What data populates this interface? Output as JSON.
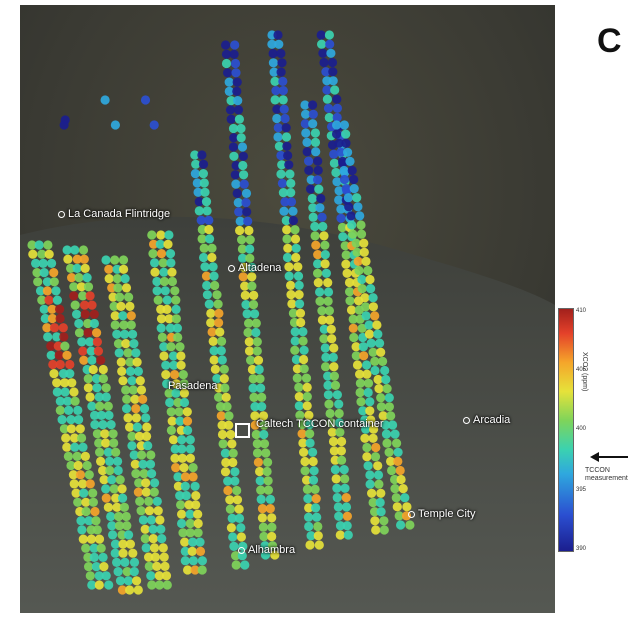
{
  "panel_letter": "C",
  "places": [
    {
      "id": "la-canada",
      "label": "La Canada Flintridge"
    },
    {
      "id": "altadena",
      "label": "Altadena"
    },
    {
      "id": "pasadena",
      "label": "Pasadena"
    },
    {
      "id": "caltech",
      "label": "Caltech TCCON container"
    },
    {
      "id": "arcadia",
      "label": "Arcadia"
    },
    {
      "id": "temple-city",
      "label": "Temple City"
    },
    {
      "id": "alhambra",
      "label": "Alhambra"
    }
  ],
  "colorbar": {
    "label": "XCO2 (ppm)",
    "ticks": [
      "410",
      "405",
      "400",
      "395",
      "390"
    ],
    "annotation": "TCCON measurement",
    "colors": [
      "#1b1e8e",
      "#2b4fd1",
      "#2fa8de",
      "#3bd2b0",
      "#7fd45a",
      "#e6e23a",
      "#f5a52a",
      "#e4412a",
      "#a2201c"
    ]
  }
}
